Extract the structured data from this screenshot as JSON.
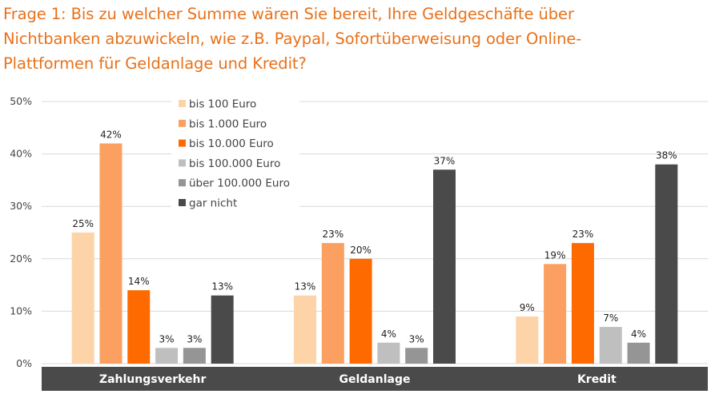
{
  "title_lines": [
    "Frage 1: Bis zu welcher Summe wären Sie bereit, Ihre Geldgeschäfte über",
    "Nichtbanken abzuwickeln, wie z.B. Paypal, Sofortüberweisung  oder Online-",
    "Plattformen für Geldanlage und Kredit?"
  ],
  "colors": {
    "title": "#E8711A",
    "category_band": "#4A4A4A",
    "grid": "#D9D9D9"
  },
  "chart_data": {
    "type": "bar",
    "categories": [
      "Zahlungsverkehr",
      "Geldanlage",
      "Kredit"
    ],
    "series": [
      {
        "name": "bis 100 Euro",
        "color": "#FDD4A8",
        "values": [
          25,
          13,
          9
        ]
      },
      {
        "name": "bis 1.000 Euro",
        "color": "#FBA060",
        "values": [
          42,
          23,
          19
        ]
      },
      {
        "name": "bis 10.000 Euro",
        "color": "#FF6A00",
        "values": [
          14,
          20,
          23
        ]
      },
      {
        "name": "bis 100.000 Euro",
        "color": "#BFBFBF",
        "values": [
          3,
          4,
          7
        ]
      },
      {
        "name": "über 100.000 Euro",
        "color": "#959595",
        "values": [
          3,
          3,
          4
        ]
      },
      {
        "name": "gar nicht",
        "color": "#4A4A4A",
        "values": [
          13,
          37,
          38
        ]
      }
    ],
    "value_suffix": "%",
    "ylim": [
      0,
      50
    ],
    "yticks": [
      "0%",
      "10%",
      "20%",
      "30%",
      "40%",
      "50%"
    ],
    "grid": true,
    "legend": "top-left, inside plot"
  }
}
